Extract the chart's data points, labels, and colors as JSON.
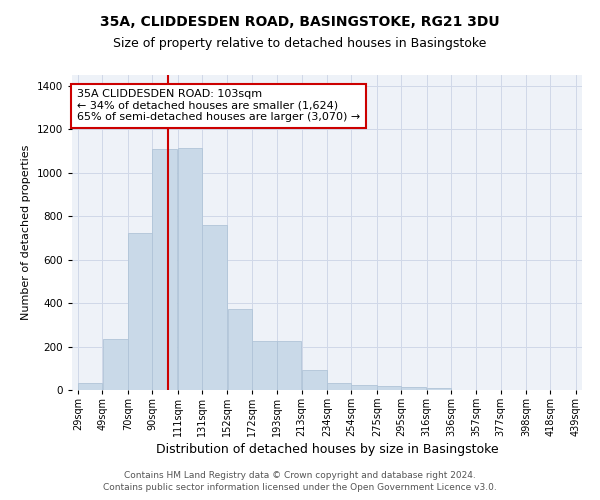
{
  "title": "35A, CLIDDESDEN ROAD, BASINGSTOKE, RG21 3DU",
  "subtitle": "Size of property relative to detached houses in Basingstoke",
  "xlabel": "Distribution of detached houses by size in Basingstoke",
  "ylabel": "Number of detached properties",
  "bar_values": [
    30,
    235,
    725,
    1110,
    1115,
    760,
    375,
    225,
    225,
    90,
    30,
    25,
    20,
    15,
    10,
    0,
    0,
    0,
    0,
    0
  ],
  "bin_edges": [
    29,
    49,
    70,
    90,
    111,
    131,
    152,
    172,
    193,
    213,
    234,
    254,
    275,
    295,
    316,
    336,
    357,
    377,
    398,
    418,
    439
  ],
  "bar_color": "#c9d9e8",
  "bar_edgecolor": "#b0c4d8",
  "tick_labels": [
    "29sqm",
    "49sqm",
    "70sqm",
    "90sqm",
    "111sqm",
    "131sqm",
    "152sqm",
    "172sqm",
    "193sqm",
    "213sqm",
    "234sqm",
    "254sqm",
    "275sqm",
    "295sqm",
    "316sqm",
    "336sqm",
    "357sqm",
    "377sqm",
    "398sqm",
    "418sqm",
    "439sqm"
  ],
  "vline_x": 103,
  "vline_color": "#cc0000",
  "ylim": [
    0,
    1450
  ],
  "annotation_text": "35A CLIDDESDEN ROAD: 103sqm\n← 34% of detached houses are smaller (1,624)\n65% of semi-detached houses are larger (3,070) →",
  "annotation_box_color": "#cc0000",
  "annotation_fill": "white",
  "grid_color": "#d0d8e8",
  "bg_color": "#eef2f8",
  "footer_line1": "Contains HM Land Registry data © Crown copyright and database right 2024.",
  "footer_line2": "Contains public sector information licensed under the Open Government Licence v3.0.",
  "title_fontsize": 10,
  "subtitle_fontsize": 9,
  "xlabel_fontsize": 9,
  "ylabel_fontsize": 8,
  "tick_fontsize": 7,
  "annotation_fontsize": 8,
  "footer_fontsize": 6.5
}
